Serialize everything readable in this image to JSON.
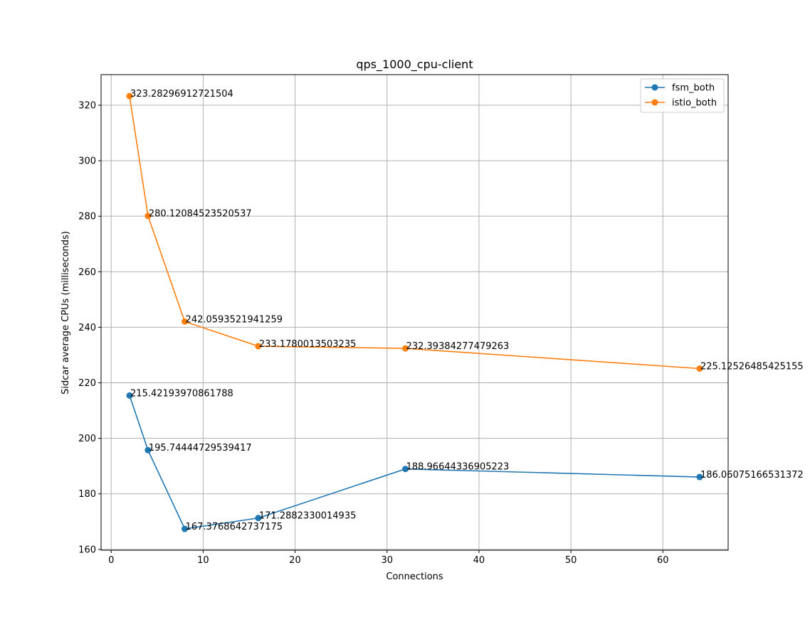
{
  "chart_data": {
    "type": "line",
    "title": "qps_1000_cpu-client",
    "xlabel": "Connections",
    "ylabel": "Sidcar average CPUs (milliseconds)",
    "xlim": [
      -1.1,
      67.1
    ],
    "ylim": [
      159.7,
      331.0
    ],
    "xticks": [
      0,
      10,
      20,
      30,
      40,
      50,
      60
    ],
    "yticks": [
      160,
      180,
      200,
      220,
      240,
      260,
      280,
      300,
      320
    ],
    "grid": true,
    "legend_position": "top-right",
    "x": [
      2,
      4,
      8,
      16,
      32,
      64
    ],
    "series": [
      {
        "name": "fsm_both",
        "color": "#1f77b4",
        "values": [
          215.42193970861788,
          195.74444729539417,
          167.3768642737175,
          171.2882330014935,
          188.96644336905223,
          186.06075166531372
        ],
        "labels": [
          "215.42193970861788",
          "195.74444729539417",
          "167.3768642737175",
          "171.2882330014935",
          "188.96644336905223",
          "186.06075166531372"
        ]
      },
      {
        "name": "istio_both",
        "color": "#ff7f0e",
        "values": [
          323.28296912721504,
          280.12084523520537,
          242.0593521941259,
          233.1780013503235,
          232.39384277479263,
          225.12526485425155
        ],
        "labels": [
          "323.28296912721504",
          "280.12084523520537",
          "242.0593521941259",
          "233.1780013503235",
          "232.39384277479263",
          "225.12526485425155"
        ]
      }
    ]
  }
}
